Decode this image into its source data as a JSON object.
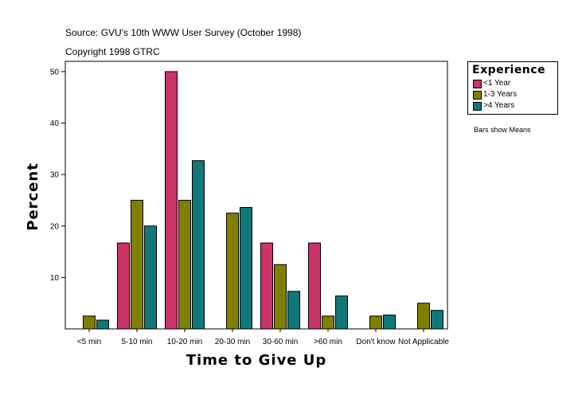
{
  "header": {
    "source": "Source: GVU's 10th WWW User Survey (October 1998)",
    "copyright": "Copyright 1998 GTRC"
  },
  "note": "Bars show Means",
  "colors": {
    "lt1": "#cc3366",
    "y1to3": "#808000",
    "gt4": "#117777"
  },
  "chart_data": {
    "type": "bar",
    "title": "",
    "xlabel": "Time to Give Up",
    "ylabel": "Percent",
    "categories": [
      "<5 min",
      "5-10 min",
      "10-20 min",
      "20-30 min",
      "30-60 min",
      ">60 min",
      "Don't know",
      "Not Applicable"
    ],
    "ylim": [
      0,
      52
    ],
    "yticks": [
      10,
      20,
      30,
      40,
      50
    ],
    "legend_title": "Experience",
    "legend_position": "right",
    "series": [
      {
        "name": "<1 Year",
        "color": "#cc3366",
        "values": [
          0,
          16.7,
          50.0,
          0,
          16.7,
          16.7,
          0,
          0
        ]
      },
      {
        "name": "1-3 Years",
        "color": "#808000",
        "values": [
          2.5,
          25.0,
          25.0,
          22.5,
          12.5,
          2.5,
          2.5,
          5.0
        ]
      },
      {
        "name": ">4 Years",
        "color": "#117777",
        "values": [
          1.7,
          20.0,
          32.7,
          23.6,
          7.3,
          6.4,
          2.7,
          3.6
        ]
      }
    ]
  }
}
